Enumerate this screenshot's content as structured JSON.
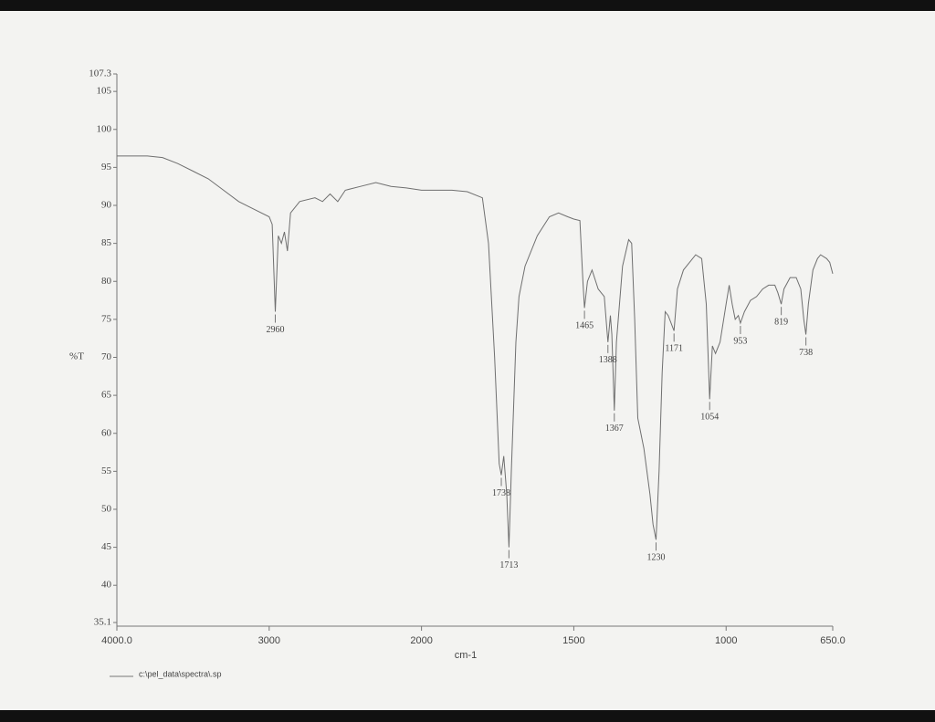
{
  "chart_data": {
    "type": "line",
    "ylabel": "%T",
    "xlabel": "cm-1",
    "legend": "c:\\pel_data\\spectra\\.sp",
    "color": "#6f6f6f",
    "xlim": [
      4000,
      650
    ],
    "ylim": [
      35.1,
      107.3
    ],
    "x_scale_break": {
      "at": 2000,
      "factor": 2
    },
    "xticks": [
      {
        "value": 4000,
        "label": "4000.0"
      },
      3000,
      2000,
      1500,
      1000,
      {
        "value": 650,
        "label": "650.0"
      }
    ],
    "yticks": [
      35.1,
      40,
      45,
      50,
      55,
      60,
      65,
      70,
      75,
      80,
      85,
      90,
      95,
      100,
      105,
      107.3
    ],
    "x": [
      4000,
      3800,
      3700,
      3600,
      3500,
      3400,
      3300,
      3200,
      3100,
      3000,
      2980,
      2960,
      2940,
      2920,
      2900,
      2880,
      2860,
      2800,
      2700,
      2650,
      2600,
      2550,
      2500,
      2400,
      2300,
      2200,
      2100,
      2000,
      1900,
      1850,
      1800,
      1780,
      1760,
      1745,
      1738,
      1730,
      1720,
      1713,
      1705,
      1690,
      1680,
      1660,
      1620,
      1580,
      1550,
      1520,
      1500,
      1480,
      1470,
      1465,
      1455,
      1440,
      1420,
      1400,
      1390,
      1388,
      1380,
      1375,
      1367,
      1360,
      1340,
      1320,
      1310,
      1300,
      1290,
      1270,
      1250,
      1240,
      1230,
      1220,
      1210,
      1200,
      1190,
      1171,
      1160,
      1140,
      1100,
      1080,
      1065,
      1054,
      1045,
      1035,
      1020,
      1000,
      990,
      980,
      970,
      960,
      953,
      940,
      920,
      900,
      880,
      860,
      840,
      830,
      819,
      810,
      790,
      770,
      755,
      745,
      738,
      730,
      715,
      700,
      690,
      670,
      660,
      650
    ],
    "values": [
      96.5,
      96.5,
      96.3,
      95.5,
      94.5,
      93.5,
      92,
      90.5,
      89.5,
      88.5,
      87.5,
      76,
      86,
      85,
      86.5,
      84,
      89,
      90.5,
      91,
      90.5,
      91.5,
      90.5,
      92,
      92.5,
      93,
      92.5,
      92.3,
      92,
      92,
      91.8,
      91,
      85,
      70,
      56,
      54.5,
      57,
      52,
      45,
      55,
      72,
      78,
      82,
      86,
      88.5,
      89,
      88.5,
      88.2,
      88,
      80,
      76.5,
      80,
      81.5,
      79,
      78,
      73,
      72,
      75.5,
      73,
      63,
      72,
      82,
      85.5,
      85,
      75,
      62,
      58,
      52,
      48,
      46,
      55,
      68,
      76,
      75.5,
      73.5,
      79,
      81.5,
      83.5,
      83,
      77,
      64.5,
      71.5,
      70.5,
      72,
      77,
      79.5,
      77,
      75,
      75.5,
      74.5,
      76,
      77.5,
      78,
      79,
      79.5,
      79.5,
      78.5,
      77,
      79,
      80.5,
      80.5,
      79,
      75,
      73,
      77,
      81.5,
      83,
      83.5,
      83,
      82.5,
      81
    ],
    "peaks": [
      {
        "x": 2960,
        "y": 76
      },
      {
        "x": 1738,
        "y": 54.5
      },
      {
        "x": 1713,
        "y": 45
      },
      {
        "x": 1465,
        "y": 76.5
      },
      {
        "x": 1388,
        "y": 72
      },
      {
        "x": 1367,
        "y": 63
      },
      {
        "x": 1230,
        "y": 46
      },
      {
        "x": 1171,
        "y": 73.5
      },
      {
        "x": 1054,
        "y": 64.5
      },
      {
        "x": 953,
        "y": 74.5
      },
      {
        "x": 819,
        "y": 77
      },
      {
        "x": 738,
        "y": 73
      }
    ]
  }
}
